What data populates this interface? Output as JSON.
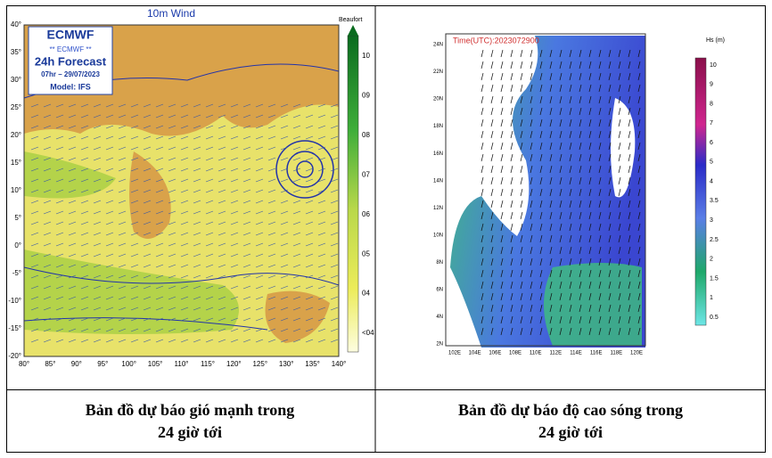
{
  "left_map": {
    "title": "10m Wind",
    "logo": "ECMWF",
    "badge": [
      "** ECMWF **",
      "24h Forecast",
      "07hr – 29/07/2023",
      "Model: IFS"
    ],
    "legend_title": "Beaufort",
    "legend_labels": [
      "10",
      "09",
      "08",
      "07",
      "06",
      "05",
      "04",
      "<04"
    ],
    "x_labels": [
      "80°",
      "85°",
      "90°",
      "95°",
      "100°",
      "105°",
      "110°",
      "115°",
      "120°",
      "125°",
      "130°",
      "135°",
      "140°"
    ],
    "y_labels": [
      "40°",
      "35°",
      "30°",
      "25°",
      "20°",
      "15°",
      "10°",
      "5°",
      "0°",
      "-5°",
      "-10°",
      "-15°",
      "-20°"
    ]
  },
  "right_map": {
    "time": "Time(UTC):2023072900",
    "legend_title": "Hs (m)",
    "legend_labels": [
      "10",
      "9",
      "8",
      "7",
      "6",
      "5",
      "4",
      "3.5",
      "3",
      "2.5",
      "2",
      "1.5",
      "1",
      "0.5"
    ],
    "x_labels": [
      "102E",
      "104E",
      "106E",
      "108E",
      "110E",
      "112E",
      "114E",
      "116E",
      "118E",
      "120E"
    ],
    "y_labels": [
      "24N",
      "22N",
      "20N",
      "18N",
      "16N",
      "14N",
      "12N",
      "10N",
      "8N",
      "6N",
      "4N",
      "2N"
    ]
  },
  "captions": [
    {
      "lines": [
        "Bản đồ dự báo gió mạnh trong",
        "24 giờ tới"
      ]
    },
    {
      "lines": [
        "Bản đồ dự báo độ cao sóng trong",
        "24 giờ tới"
      ]
    }
  ]
}
